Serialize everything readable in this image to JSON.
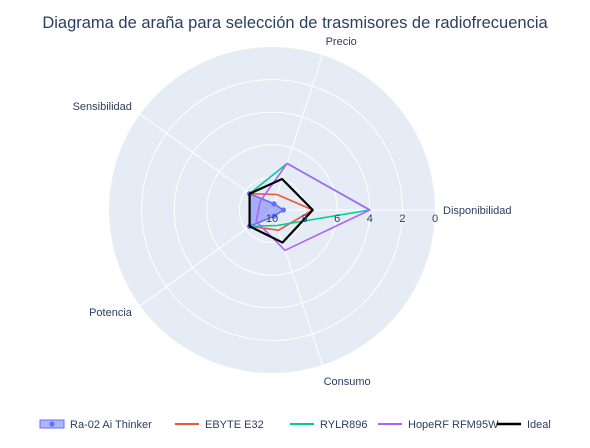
{
  "chart_data": {
    "type": "radar",
    "title": "Diagrama de araña para selección de trasmisores de radiofrecuencia",
    "axes": [
      "Disponibilidad",
      "Precio",
      "Sensibilidad",
      "Potencia",
      "Consumo"
    ],
    "radial_axis": {
      "range": [
        10,
        0
      ],
      "reversed": true,
      "tick_labels": [
        "10",
        "8",
        "6",
        "4",
        "2",
        "0"
      ],
      "tick_values": [
        10,
        8,
        6,
        4,
        2,
        0
      ]
    },
    "grid": true,
    "legend_position": "bottom",
    "series": [
      {
        "name": "Ra-02 Ai Thinker",
        "color": "#636efa",
        "fill": true,
        "markers": true,
        "values": [
          9.3,
          9.6,
          8.3,
          8.3,
          9.6
        ]
      },
      {
        "name": "EBYTE E32",
        "color": "#ef553b",
        "fill": false,
        "markers": false,
        "values": [
          7.5,
          9.0,
          8.3,
          8.3,
          8.7
        ]
      },
      {
        "name": "RYLR896",
        "color": "#00cc96",
        "fill": false,
        "markers": false,
        "values": [
          4.0,
          7.0,
          8.3,
          8.3,
          9.0
        ]
      },
      {
        "name": "HopeRF RFM95W",
        "color": "#ab63fa",
        "fill": false,
        "markers": false,
        "values": [
          4.0,
          7.0,
          9.1,
          8.8,
          7.4
        ]
      },
      {
        "name": "Ideal",
        "color": "#000000",
        "fill": false,
        "markers": false,
        "values": [
          7.5,
          8.0,
          8.3,
          8.3,
          7.9
        ]
      }
    ]
  }
}
